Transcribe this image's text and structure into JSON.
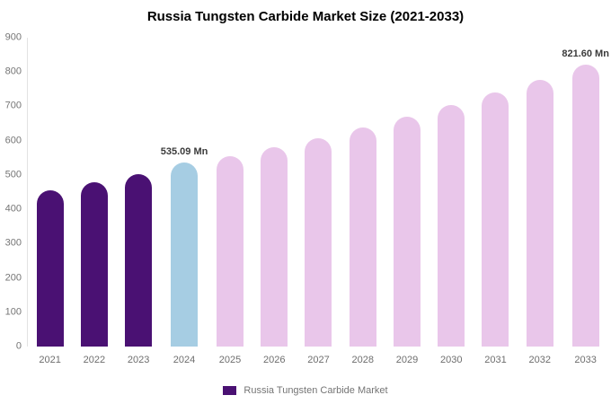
{
  "title": "Russia Tungsten Carbide Market Size (2021-2033)",
  "colors": {
    "historical": "#4a1173",
    "highlight": "#a6cde3",
    "forecast": "#e9c6ea",
    "axis_text": "#757575",
    "label_text": "#3b3b3b"
  },
  "legend": {
    "label": "Russia Tungsten Carbide Market",
    "swatch_color": "#4a1173"
  },
  "chart_data": {
    "type": "bar",
    "title": "Russia Tungsten Carbide Market Size (2021-2033)",
    "xlabel": "",
    "ylabel": "",
    "ylim": [
      0,
      900
    ],
    "ytick_step": 100,
    "grid": false,
    "legend_position": "bottom",
    "categories": [
      "2021",
      "2022",
      "2023",
      "2024",
      "2025",
      "2026",
      "2027",
      "2028",
      "2029",
      "2030",
      "2031",
      "2032",
      "2033"
    ],
    "values": [
      455,
      478,
      502,
      535.09,
      555,
      580,
      607,
      638,
      670,
      703,
      740,
      778,
      821.6
    ],
    "bars": [
      {
        "label": "2021",
        "value": 455,
        "color_key": "historical",
        "data_label": null
      },
      {
        "label": "2022",
        "value": 478,
        "color_key": "historical",
        "data_label": null
      },
      {
        "label": "2023",
        "value": 502,
        "color_key": "historical",
        "data_label": null
      },
      {
        "label": "2024",
        "value": 535.09,
        "color_key": "highlight",
        "data_label": "535.09 Mn"
      },
      {
        "label": "2025",
        "value": 555,
        "color_key": "forecast",
        "data_label": null
      },
      {
        "label": "2026",
        "value": 580,
        "color_key": "forecast",
        "data_label": null
      },
      {
        "label": "2027",
        "value": 607,
        "color_key": "forecast",
        "data_label": null
      },
      {
        "label": "2028",
        "value": 638,
        "color_key": "forecast",
        "data_label": null
      },
      {
        "label": "2029",
        "value": 670,
        "color_key": "forecast",
        "data_label": null
      },
      {
        "label": "2030",
        "value": 703,
        "color_key": "forecast",
        "data_label": null
      },
      {
        "label": "2031",
        "value": 740,
        "color_key": "forecast",
        "data_label": null
      },
      {
        "label": "2032",
        "value": 778,
        "color_key": "forecast",
        "data_label": null
      },
      {
        "label": "2033",
        "value": 821.6,
        "color_key": "forecast",
        "data_label": "821.60 Mn"
      }
    ]
  }
}
